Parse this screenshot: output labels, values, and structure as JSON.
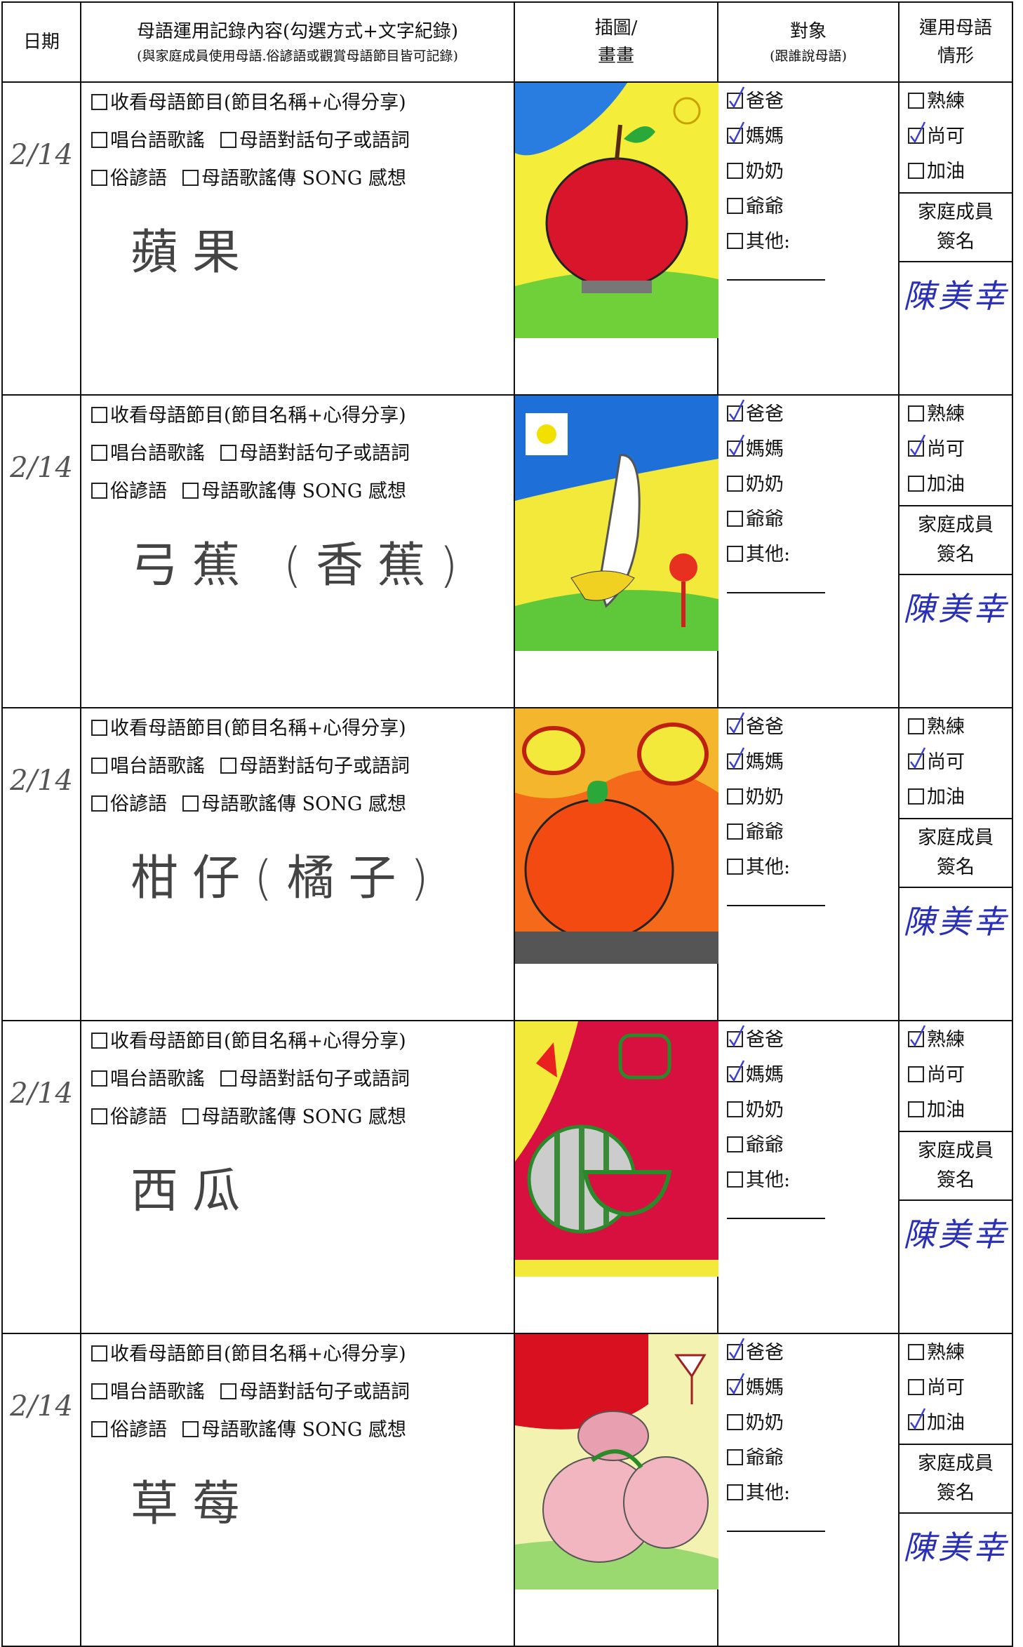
{
  "header": {
    "date": "日期",
    "content": "母語運用記錄內容(勾選方式+文字紀錄)",
    "content_note": "(與家庭成員使用母語.俗諺語或觀賞母語節目皆可記錄)",
    "picture": [
      "插圖/",
      "畫畫"
    ],
    "target": "對象",
    "target_note": "(跟誰說母語)",
    "usage": [
      "運用母語",
      "情形"
    ]
  },
  "rows": [
    {
      "date": "2/14",
      "options": [
        [
          "收看母語節目(節目名稱+心得分享)"
        ],
        [
          "唱台語歌謠",
          "母語對話句子或語詞"
        ],
        [
          "俗諺語",
          "母語歌謠傳 SONG 感想"
        ]
      ],
      "entry": "蘋果",
      "people": [
        {
          "label": "爸爸",
          "checked": true
        },
        {
          "label": "媽媽",
          "checked": true
        },
        {
          "label": "奶奶",
          "checked": false
        },
        {
          "label": "爺爺",
          "checked": false
        },
        {
          "label": "其他:",
          "checked": false
        }
      ],
      "usage": [
        {
          "label": "熟練",
          "checked": false
        },
        {
          "label": "尚可",
          "checked": true
        },
        {
          "label": "加油",
          "checked": false
        }
      ],
      "sign_label": "家庭成員簽名",
      "signature": "陳美幸"
    },
    {
      "date": "2/14",
      "options": [
        [
          "收看母語節目(節目名稱+心得分享)"
        ],
        [
          "唱台語歌謠",
          "母語對話句子或語詞"
        ],
        [
          "俗諺語",
          "母語歌謠傳 SONG 感想"
        ]
      ],
      "entry": "弓蕉 (香蕉)",
      "people": [
        {
          "label": "爸爸",
          "checked": true
        },
        {
          "label": "媽媽",
          "checked": true
        },
        {
          "label": "奶奶",
          "checked": false
        },
        {
          "label": "爺爺",
          "checked": false
        },
        {
          "label": "其他:",
          "checked": false
        }
      ],
      "usage": [
        {
          "label": "熟練",
          "checked": false
        },
        {
          "label": "尚可",
          "checked": true
        },
        {
          "label": "加油",
          "checked": false
        }
      ],
      "sign_label": "家庭成員簽名",
      "signature": "陳美幸"
    },
    {
      "date": "2/14",
      "options": [
        [
          "收看母語節目(節目名稱+心得分享)"
        ],
        [
          "唱台語歌謠",
          "母語對話句子或語詞"
        ],
        [
          "俗諺語",
          "母語歌謠傳 SONG 感想"
        ]
      ],
      "entry": "柑仔(橘子)",
      "people": [
        {
          "label": "爸爸",
          "checked": true
        },
        {
          "label": "媽媽",
          "checked": true
        },
        {
          "label": "奶奶",
          "checked": false
        },
        {
          "label": "爺爺",
          "checked": false
        },
        {
          "label": "其他:",
          "checked": false
        }
      ],
      "usage": [
        {
          "label": "熟練",
          "checked": false
        },
        {
          "label": "尚可",
          "checked": true
        },
        {
          "label": "加油",
          "checked": false
        }
      ],
      "sign_label": "家庭成員簽名",
      "signature": "陳美幸"
    },
    {
      "date": "2/14",
      "options": [
        [
          "收看母語節目(節目名稱+心得分享)"
        ],
        [
          "唱台語歌謠",
          "母語對話句子或語詞"
        ],
        [
          "俗諺語",
          "母語歌謠傳 SONG 感想"
        ]
      ],
      "entry": "西瓜",
      "people": [
        {
          "label": "爸爸",
          "checked": true
        },
        {
          "label": "媽媽",
          "checked": true
        },
        {
          "label": "奶奶",
          "checked": false
        },
        {
          "label": "爺爺",
          "checked": false
        },
        {
          "label": "其他:",
          "checked": false
        }
      ],
      "usage": [
        {
          "label": "熟練",
          "checked": true
        },
        {
          "label": "尚可",
          "checked": false
        },
        {
          "label": "加油",
          "checked": false
        }
      ],
      "sign_label": "家庭成員簽名",
      "signature": "陳美幸"
    },
    {
      "date": "2/14",
      "options": [
        [
          "收看母語節目(節目名稱+心得分享)"
        ],
        [
          "唱台語歌謠",
          "母語對話句子或語詞"
        ],
        [
          "俗諺語",
          "母語歌謠傳 SONG 感想"
        ]
      ],
      "entry": "草莓",
      "people": [
        {
          "label": "爸爸",
          "checked": true
        },
        {
          "label": "媽媽",
          "checked": true
        },
        {
          "label": "奶奶",
          "checked": false
        },
        {
          "label": "爺爺",
          "checked": false
        },
        {
          "label": "其他:",
          "checked": false
        }
      ],
      "usage": [
        {
          "label": "熟練",
          "checked": false
        },
        {
          "label": "尚可",
          "checked": false
        },
        {
          "label": "加油",
          "checked": true
        }
      ],
      "sign_label": "家庭成員簽名",
      "signature": "陳美幸"
    }
  ]
}
